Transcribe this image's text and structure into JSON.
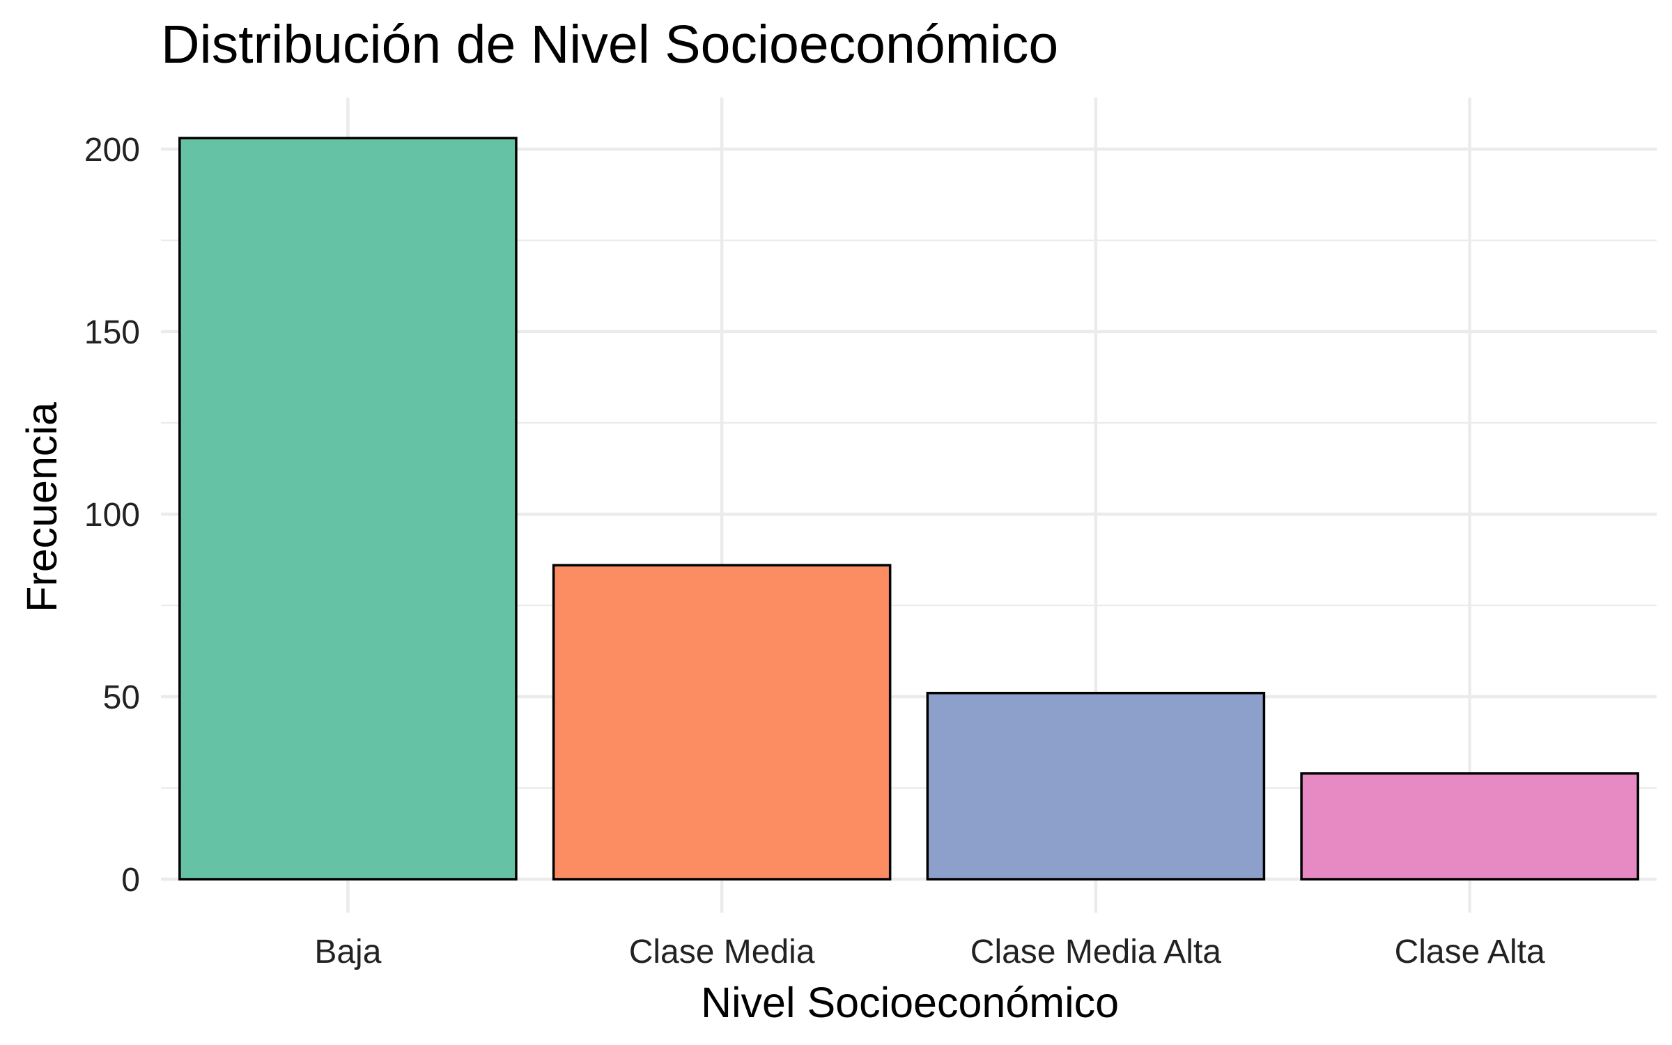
{
  "chart_data": {
    "type": "bar",
    "title": "Distribución de Nivel Socioeconómico",
    "xlabel": "Nivel Socioeconómico",
    "ylabel": "Frecuencia",
    "categories": [
      "Baja",
      "Clase Media",
      "Clase Media Alta",
      "Clase Alta"
    ],
    "values": [
      203,
      86,
      51,
      29
    ],
    "colors": [
      "#66c2a5",
      "#fc8d62",
      "#8da0cb",
      "#e78ac3"
    ],
    "bar_outline_color": "#000000",
    "ylim": [
      0,
      210
    ],
    "yticks": [
      0,
      50,
      100,
      150,
      200
    ],
    "grid": true,
    "legend": "none"
  }
}
